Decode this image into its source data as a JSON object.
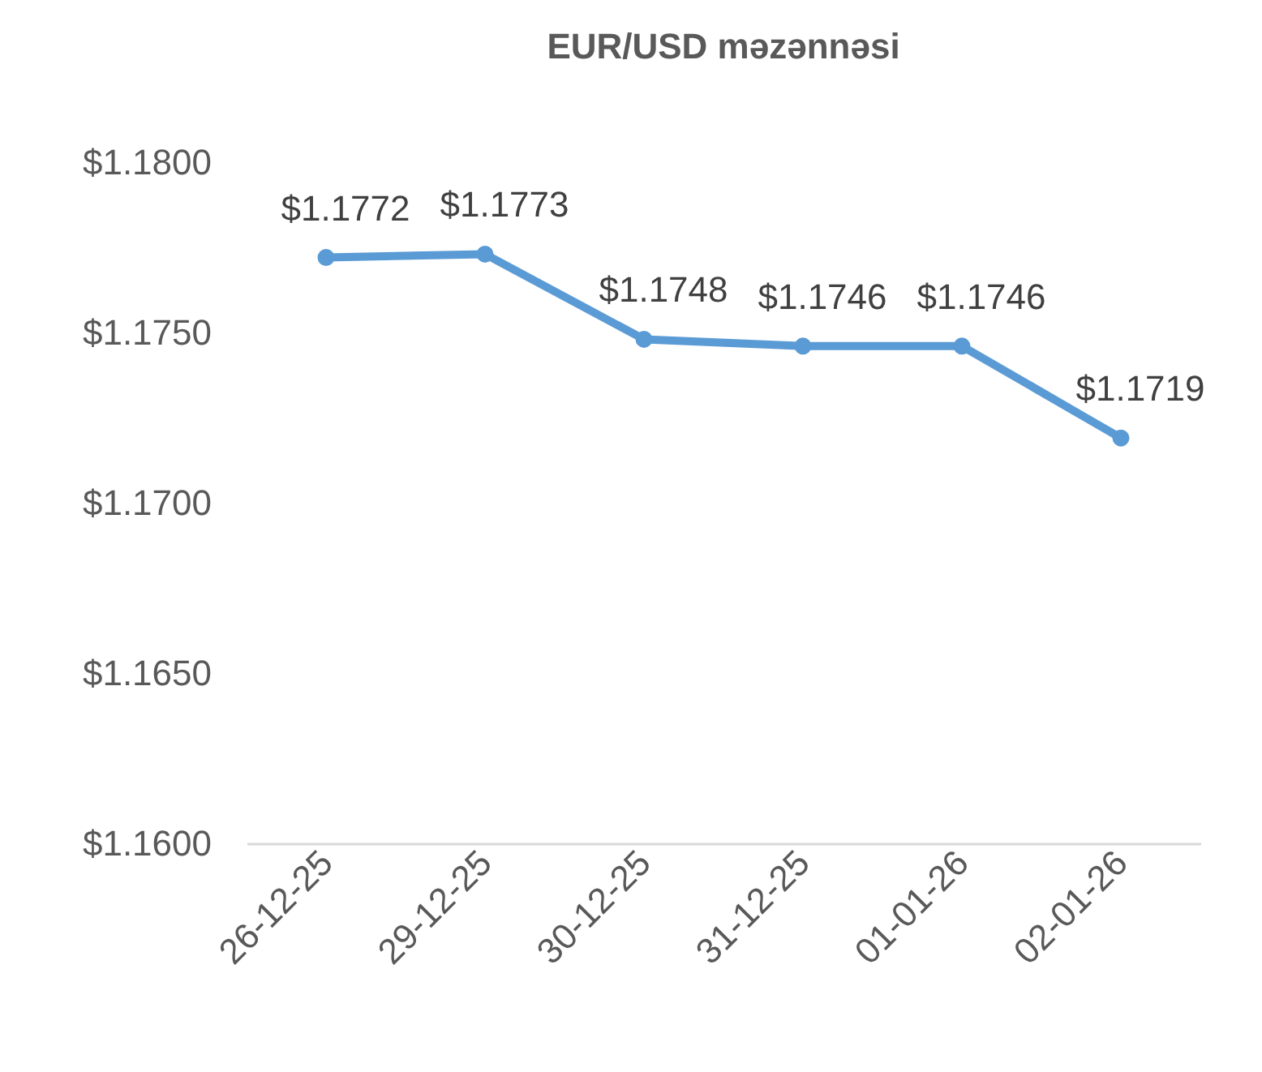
{
  "chart_data": {
    "type": "line",
    "title": "EUR/USD məzənnəsi",
    "categories": [
      "26-12-25",
      "29-12-25",
      "30-12-25",
      "31-12-25",
      "01-01-26",
      "02-01-26"
    ],
    "series": [
      {
        "color": "#5b9bd5",
        "values": [
          1.1772,
          1.1773,
          1.1748,
          1.1746,
          1.1746,
          1.1719
        ],
        "value_labels": [
          "$1.1772",
          "$1.1773",
          "$1.1748",
          "$1.1746",
          "$1.1746",
          "$1.1719"
        ]
      }
    ],
    "ylim": [
      1.16,
      1.18
    ],
    "yticks": [
      {
        "value": 1.16,
        "label": "$1.1600"
      },
      {
        "value": 1.165,
        "label": "$1.1650"
      },
      {
        "value": 1.17,
        "label": "$1.1700"
      },
      {
        "value": 1.175,
        "label": "$1.1750"
      },
      {
        "value": 1.18,
        "label": "$1.1800"
      }
    ],
    "grid": false,
    "marker": "circle",
    "line_style": "solid"
  }
}
